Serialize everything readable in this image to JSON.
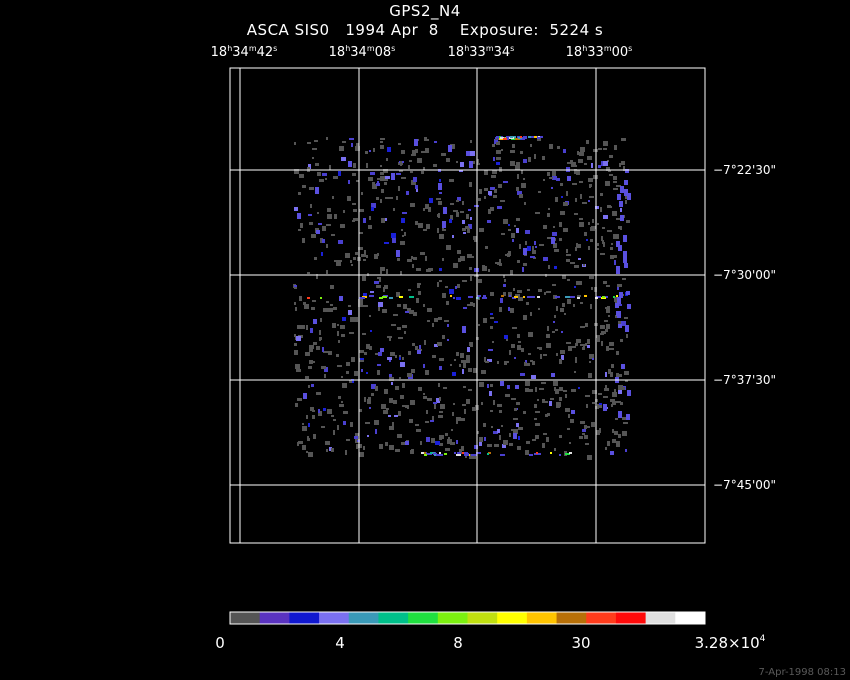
{
  "header": {
    "title": "GPS2_N4",
    "subtitle": "ASCA SIS0   1994 Apr  8    Exposure:  5224 s"
  },
  "axes": {
    "ra_ticks": [
      {
        "h": "18",
        "m": "34",
        "s": "42"
      },
      {
        "h": "18",
        "m": "34",
        "s": "08"
      },
      {
        "h": "18",
        "m": "33",
        "s": "34"
      },
      {
        "h": "18",
        "m": "33",
        "s": "00"
      }
    ],
    "dec_ticks": [
      "−7°22'30\"",
      "−7°30'00\"",
      "−7°37'30\"",
      "−7°45'00\""
    ]
  },
  "colorbar": {
    "colors": [
      "#555555",
      "#5a33c0",
      "#1018d0",
      "#7a70f0",
      "#3a9ab8",
      "#00c08a",
      "#20e040",
      "#7cf010",
      "#c0e010",
      "#ffff00",
      "#ffc400",
      "#b87008",
      "#ff3c1c",
      "#ff0a0a",
      "#e0e0e0",
      "#ffffff"
    ],
    "labels": [
      {
        "text": "0"
      },
      {
        "text": "4"
      },
      {
        "text": "8"
      },
      {
        "text": "30"
      },
      {
        "text": "3.28×10",
        "sup": "4"
      }
    ]
  },
  "footer": {
    "timestamp": "7-Apr-1998 08:13"
  }
}
